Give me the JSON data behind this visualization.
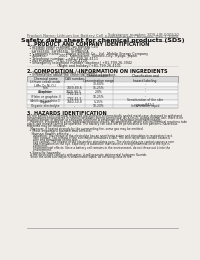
{
  "bg_color": "#f0ede8",
  "header_top_left": "Product Name: Lithium Ion Battery Cell",
  "header_top_right_line1": "Substance number: SDS-LIB-000510",
  "header_top_right_line2": "Establishment / Revision: Dec.7.2009",
  "main_title": "Safety data sheet for chemical products (SDS)",
  "section1_title": "1. PRODUCT AND COMPANY IDENTIFICATION",
  "section1_lines": [
    "  • Product name: Lithium Ion Battery Cell",
    "  • Product code: Cylindrical-type cell",
    "    SHY8650U, SHY8650L, SHY8650A",
    "  • Company name:     Sanyo Electric Co., Ltd.  Mobile Energy Company",
    "  • Address:           2001  Kamikaizen, Sumoto-City, Hyogo, Japan",
    "  • Telephone number:   +81-799-26-4111",
    "  • Fax number:   +81-799-26-4129",
    "  • Emergency telephone number (daytime) +81-799-26-3942",
    "                           (Night and holiday) +81-799-26-4101"
  ],
  "section2_title": "2. COMPOSITION / INFORMATION ON INGREDIENTS",
  "section2_intro": "  • Substance or preparation: Preparation",
  "section2_sub": "  • Information about the chemical nature of product:",
  "table_headers": [
    "Chemical name",
    "CAS number",
    "Concentration /\nConcentration range",
    "Classification and\nhazard labeling"
  ],
  "table_rows": [
    [
      "Lithium cobalt oxide\n(LiMn-Co-Ni-O₂)",
      "-",
      "30-60%",
      "-"
    ],
    [
      "Iron",
      "7439-89-6",
      "15-25%",
      "-"
    ],
    [
      "Aluminum",
      "7429-90-5",
      "2-8%",
      "-"
    ],
    [
      "Graphite\n(Flake or graphite-I)\n(Artificial graphite-I)",
      "7782-42-5\n7782-42-5",
      "10-25%",
      "-"
    ],
    [
      "Copper",
      "7440-50-8",
      "5-15%",
      "Sensitization of the skin\ngroup R42,2"
    ],
    [
      "Organic electrolyte",
      "-",
      "10-20%",
      "Inflammable liquid"
    ]
  ],
  "section3_title": "3. HAZARDS IDENTIFICATION",
  "section3_para1": "For the battery cell, chemical materials are stored in a hermetically sealed metal case, designed to withstand",
  "section3_para2": "temperatures encountered in normal conditions during normal use. As a result, during normal use, there is no",
  "section3_para3": "physical danger of ignition or explosion and there is no danger of hazardous materials leakage.",
  "section3_para4": "    However, if exposed to a fire, added mechanical shocks, decompressed, where electro-chemical reactions take",
  "section3_para5": "place, gas release cannot be operated. The battery cell case will be penetrated or fire patterns, hazardous",
  "section3_para6": "materials may be released.",
  "section3_para7": "    Moreover, if heated strongly by the surrounding fire, some gas may be emitted.",
  "section3_bullet1": "  • Most important hazard and effects:",
  "section3_human": "    Human health effects:",
  "section3_human_lines": [
    "       Inhalation: The release of the electrolyte has an anesthesia action and stimulates in respiratory tract.",
    "       Skin contact: The release of the electrolyte stimulates a skin. The electrolyte skin contact causes a",
    "       sore and stimulation on the skin.",
    "       Eye contact: The release of the electrolyte stimulates eyes. The electrolyte eye contact causes a sore",
    "       and stimulation on the eye. Especially, a substance that causes a strong inflammation of the eye is",
    "       contained.",
    "       Environmental effects: Since a battery cell remains in the environment, do not throw out it into the",
    "       environment."
  ],
  "section3_specific": "  • Specific hazards:",
  "section3_specific_lines": [
    "    If the electrolyte contacts with water, it will generate detrimental hydrogen fluoride.",
    "    Since the used electrolyte is inflammable liquid, do not bring close to fire."
  ]
}
